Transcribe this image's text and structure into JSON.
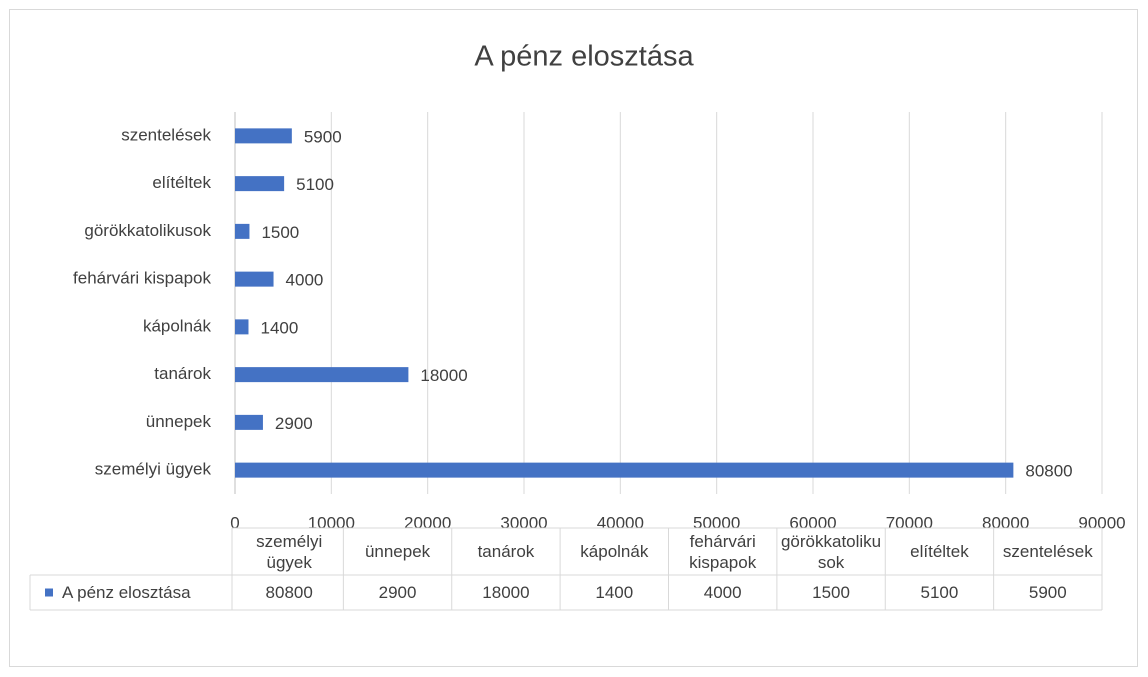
{
  "chart_data": {
    "type": "bar",
    "orientation": "horizontal",
    "title": "A pénz elosztása",
    "categories": [
      "személyi ügyek",
      "ünnepek",
      "tanárok",
      "kápolnák",
      "fehárvári kispapok",
      "görökkatolikusok",
      "elítéltek",
      "szentelések"
    ],
    "series": [
      {
        "name": "A pénz elosztása",
        "color": "#4472c4",
        "values": [
          80800,
          2900,
          18000,
          1400,
          4000,
          1500,
          5100,
          5900
        ]
      }
    ],
    "xlim": [
      0,
      90000
    ],
    "xticks": [
      0,
      10000,
      20000,
      30000,
      40000,
      50000,
      60000,
      70000,
      80000,
      90000
    ],
    "grid": true,
    "data_labels": true,
    "data_table": true
  }
}
